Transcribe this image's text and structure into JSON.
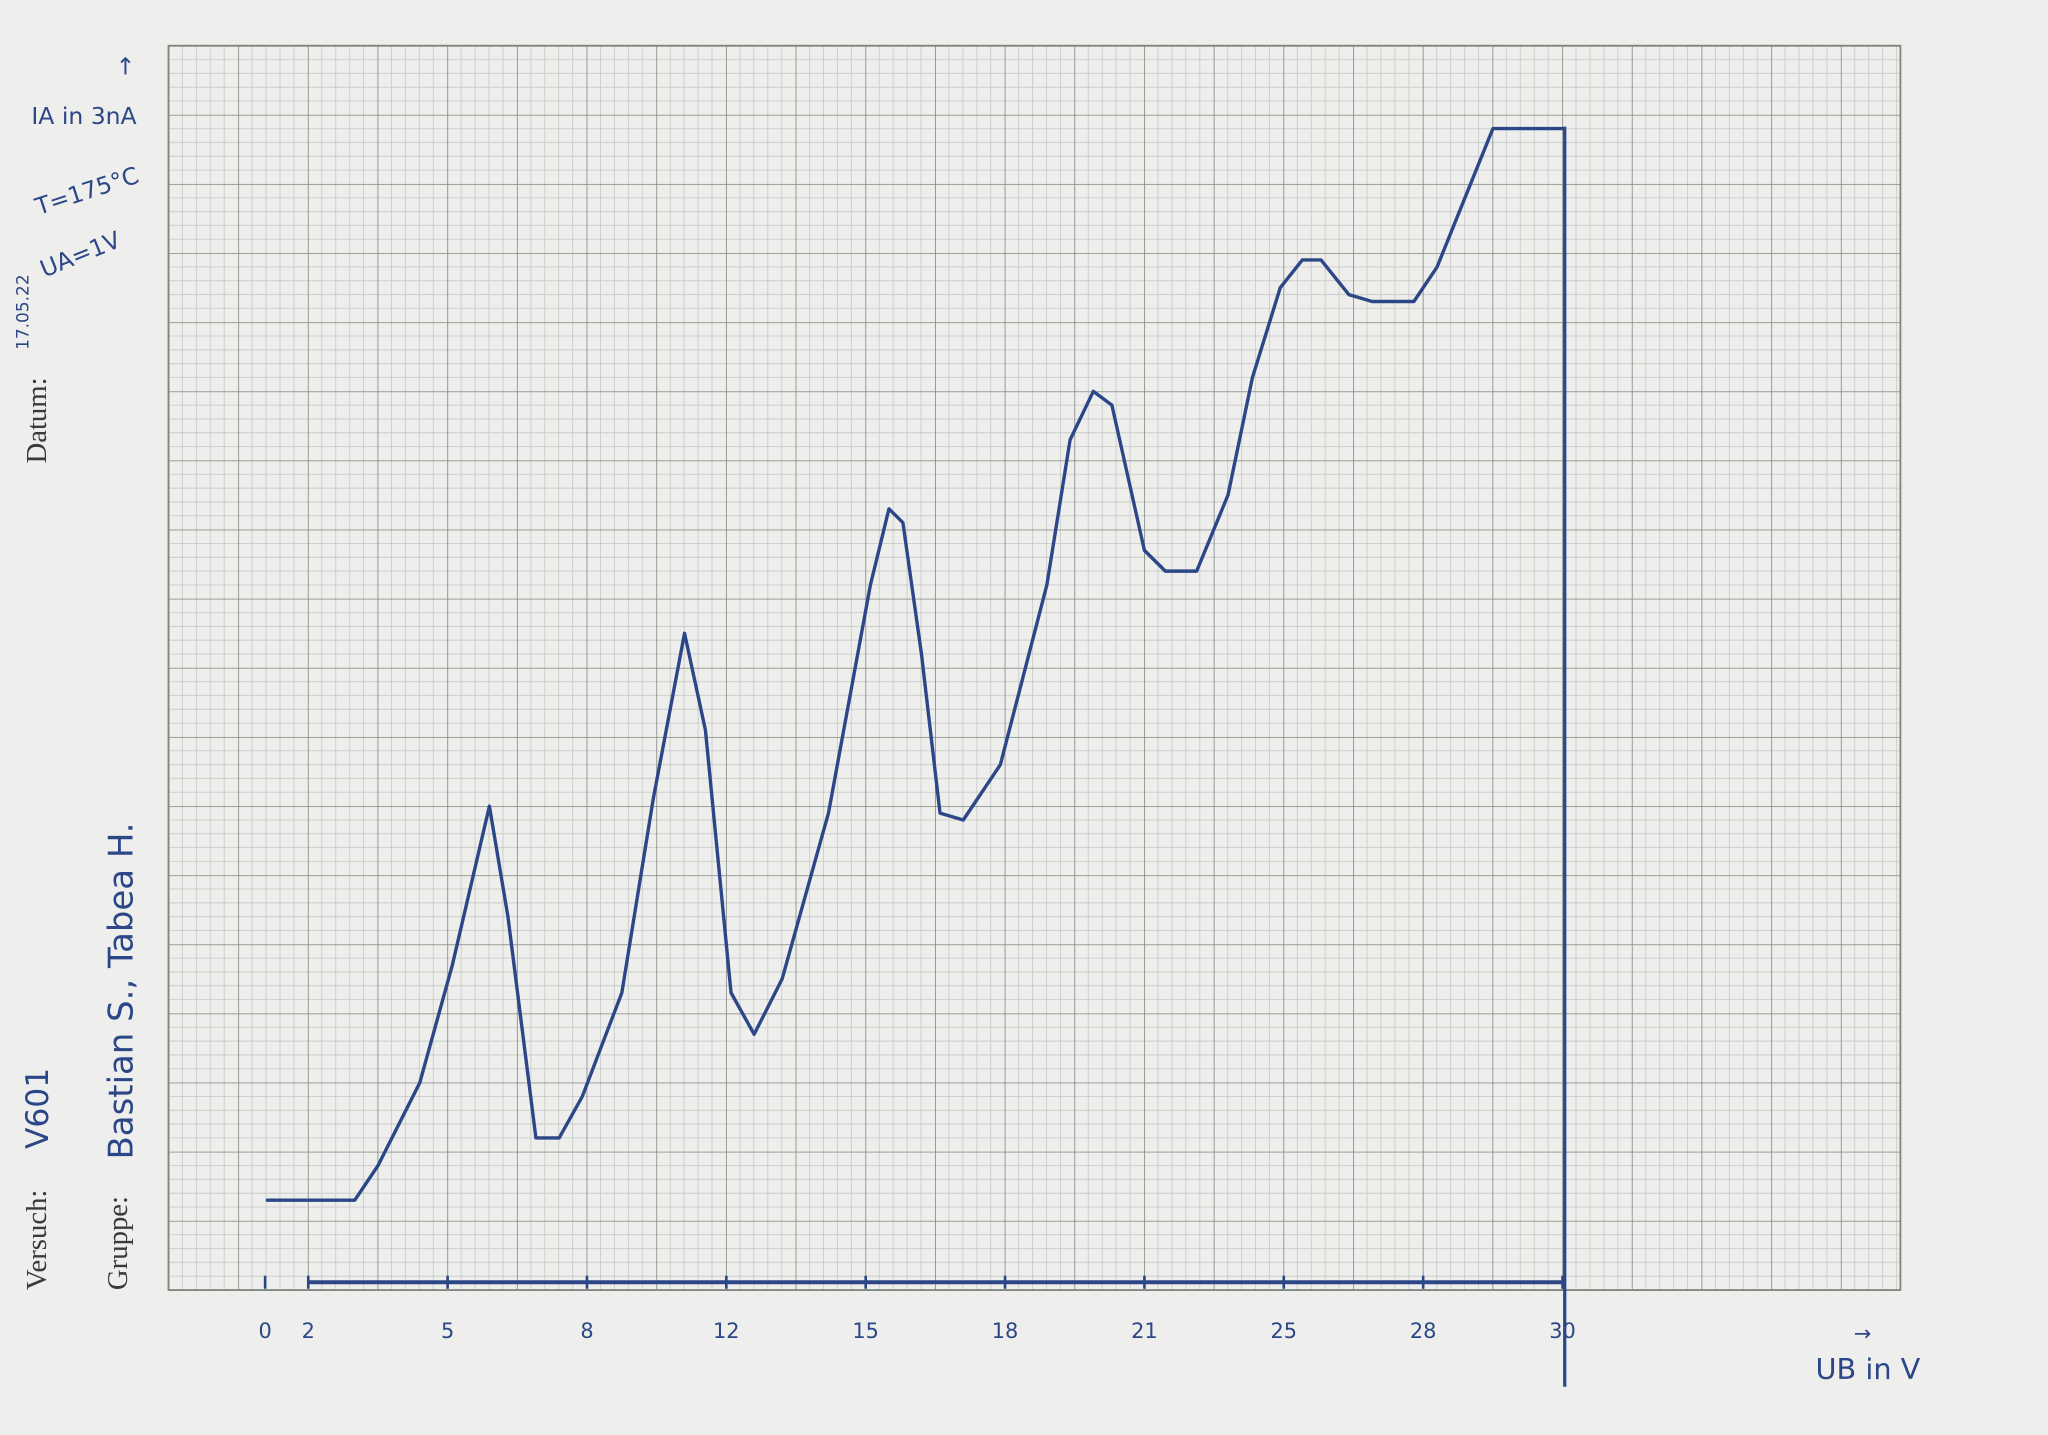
{
  "chart_data": {
    "type": "line",
    "date_label": "Datum:",
    "date": "17.05.22",
    "experiment_label": "Versuch:",
    "experiment": "V601",
    "group_label": "Gruppe:",
    "group": "Bastian S., Tabea H.",
    "ylabel": "IA in 3nA",
    "xlabel": "UB in V",
    "annotations": [
      "T=175°C",
      "UA=1V"
    ],
    "color": "#2c4787",
    "x": [
      0.1,
      3.0,
      3.5,
      4.4,
      5.1,
      5.9,
      6.3,
      6.9,
      7.4,
      7.9,
      9.0,
      9.9,
      10.8,
      11.4,
      12.1,
      12.6,
      13.2,
      14.2,
      15.1,
      15.5,
      15.8,
      16.2,
      16.6,
      17.1,
      17.9,
      18.9,
      19.4,
      19.9,
      20.3,
      21.0,
      21.6,
      22.5,
      23.4,
      24.1,
      24.9,
      25.4,
      25.8,
      26.4,
      26.9,
      27.8,
      28.2,
      28.6,
      29.0,
      30.0
    ],
    "values": [
      1.3,
      1.3,
      1.8,
      3.0,
      4.7,
      7.0,
      5.4,
      2.2,
      2.2,
      2.8,
      4.3,
      7.1,
      9.5,
      8.1,
      4.3,
      3.7,
      4.5,
      6.9,
      10.2,
      11.3,
      11.1,
      9.2,
      6.9,
      6.8,
      7.6,
      10.2,
      12.3,
      13.0,
      12.8,
      10.7,
      10.4,
      10.4,
      11.5,
      13.2,
      14.5,
      14.9,
      14.9,
      14.4,
      14.3,
      14.3,
      14.8,
      15.8,
      16.8,
      16.8
    ],
    "xticks": [
      0,
      2,
      5,
      8,
      12,
      15,
      18,
      21,
      25,
      28,
      30
    ],
    "xlim": [
      0,
      30
    ],
    "ylim": [
      0,
      18
    ]
  }
}
